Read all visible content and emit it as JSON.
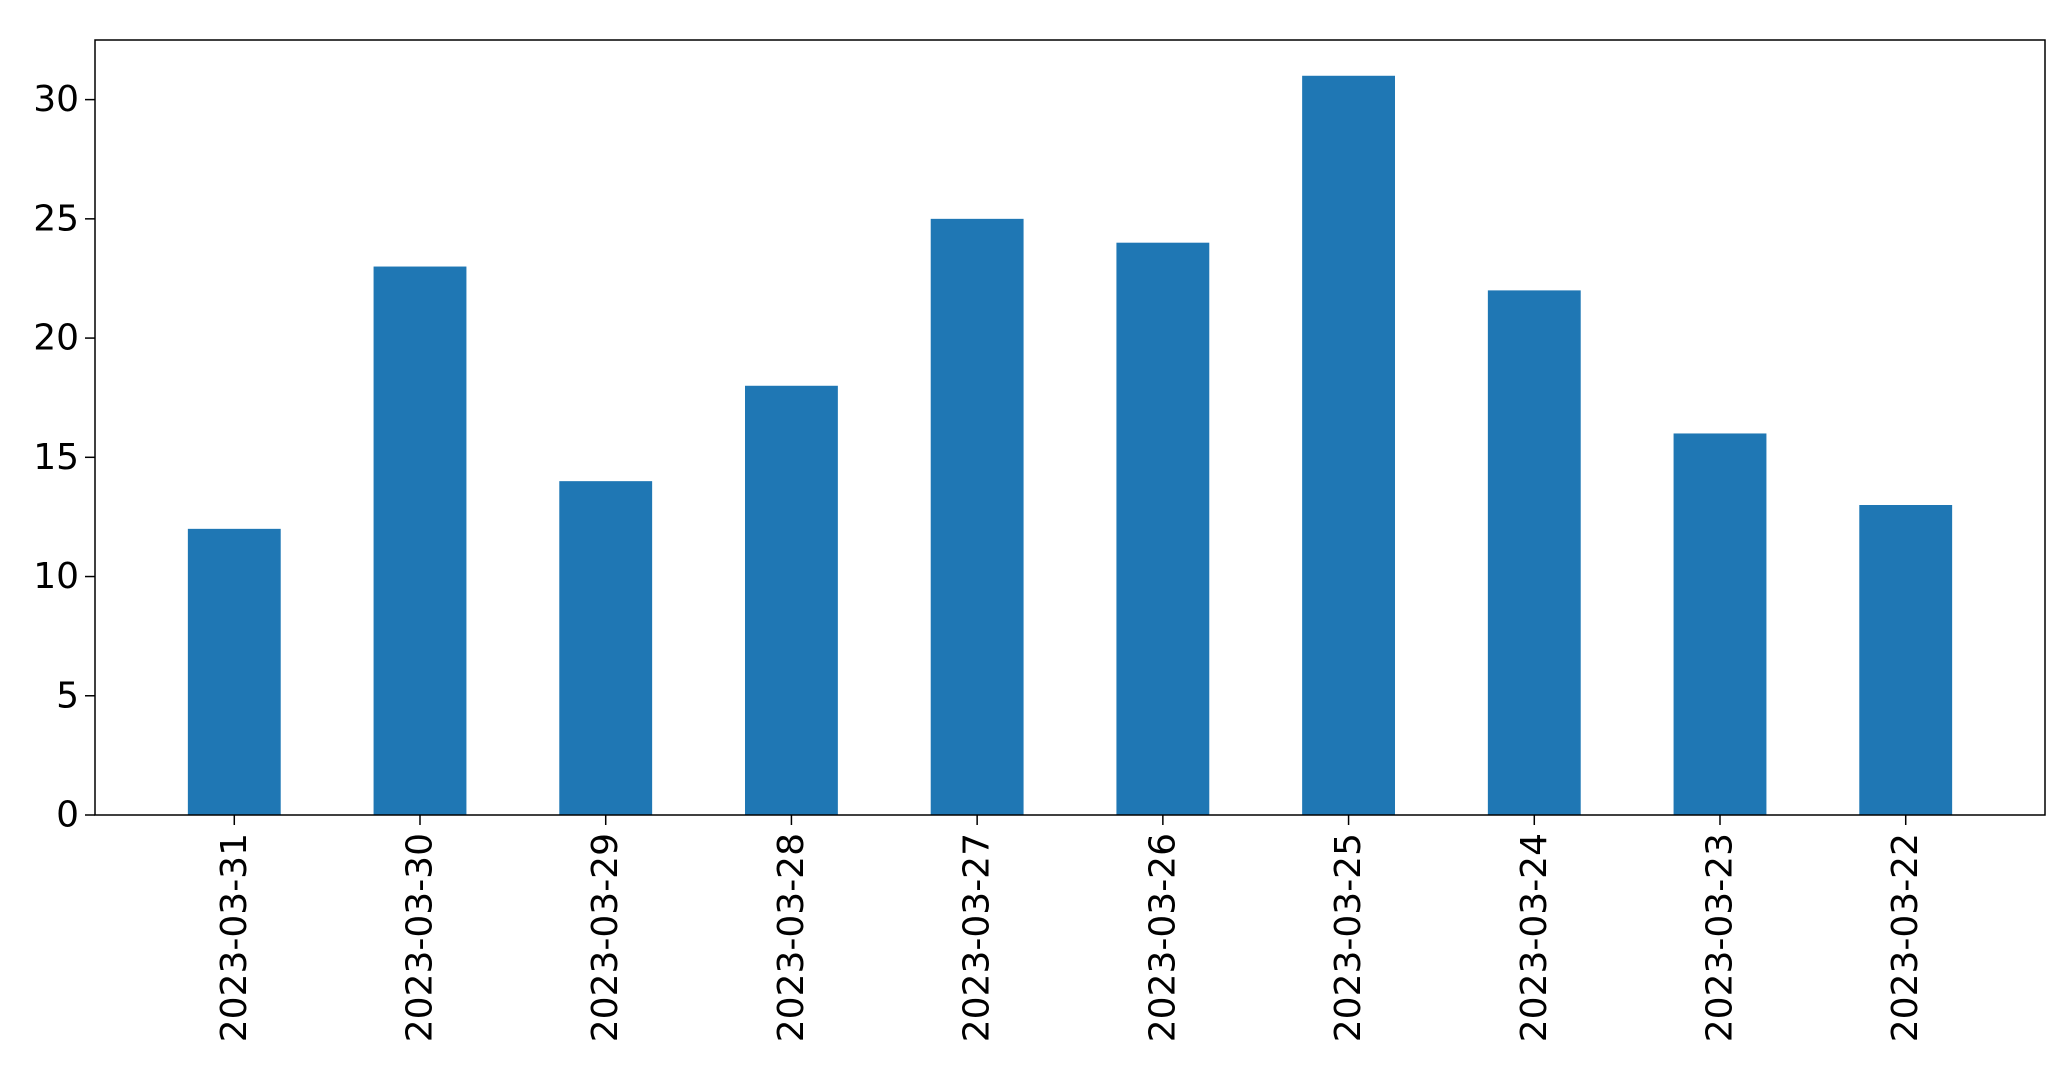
{
  "chart_data": {
    "type": "bar",
    "title": "",
    "xlabel": "",
    "ylabel": "",
    "categories": [
      "2023-03-31",
      "2023-03-30",
      "2023-03-29",
      "2023-03-28",
      "2023-03-27",
      "2023-03-26",
      "2023-03-25",
      "2023-03-24",
      "2023-03-23",
      "2023-03-22"
    ],
    "values": [
      12,
      23,
      14,
      18,
      25,
      24,
      31,
      22,
      16,
      13
    ],
    "ylim": [
      0,
      32.5
    ],
    "yticks": [
      0,
      5,
      10,
      15,
      20,
      25,
      30
    ],
    "grid": false,
    "legend": "none",
    "bar_color": "#1f77b4"
  }
}
